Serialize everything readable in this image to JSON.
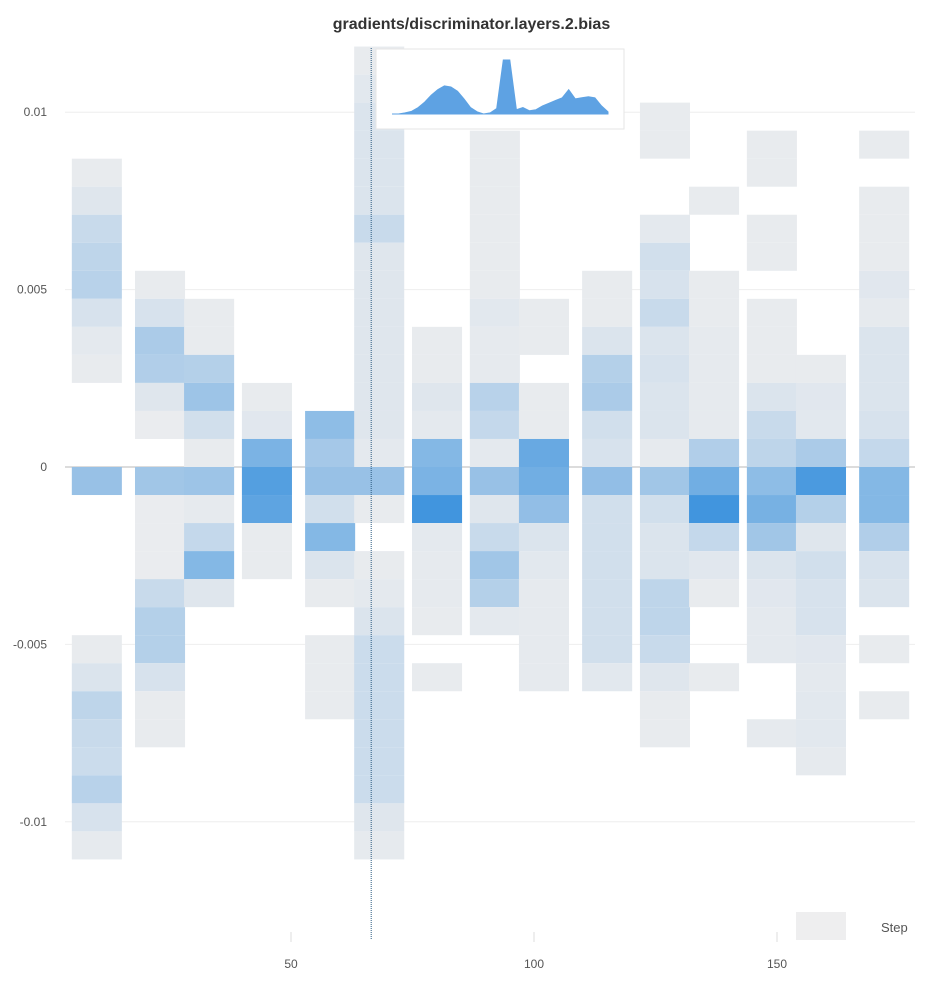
{
  "chart_data": {
    "type": "heatmap",
    "title": "gradients/discriminator.layers.2.bias",
    "xlabel": "",
    "ylabel": "",
    "xlim": [
      4.5,
      178.4
    ],
    "ylim": [
      -0.0133,
      0.0118
    ],
    "x_ticks": [
      "50",
      "100",
      "150"
    ],
    "x_tick_values": [
      50,
      100,
      150
    ],
    "y_ticks": [
      "0.01",
      "0.005",
      "0",
      "-0.005",
      "-0.01"
    ],
    "y_tick_values": [
      0.01,
      0.005,
      0,
      -0.005,
      -0.01
    ],
    "grid": true,
    "bin_size": 0.00079,
    "color_low": "#eeeeef",
    "color_high": "#2e8bdc",
    "legend": {
      "label": "Step",
      "placement": "bottom-right"
    },
    "hover_step": 66.5,
    "columns": [
      {
        "steps": [
          4.9,
          15.2
        ],
        "top_bin": 10,
        "densities": [
          0.03,
          0.08,
          0.2,
          0.25,
          0.28,
          0.12,
          0.05,
          0.03,
          null,
          null,
          null,
          0.45,
          null,
          null,
          null,
          null,
          null,
          0.03,
          0.1,
          0.25,
          0.2,
          0.18,
          0.28,
          0.12,
          0.04
        ]
      },
      {
        "steps": [
          17.9,
          28.2
        ],
        "top_bin": 6,
        "densities": [
          0.03,
          0.12,
          0.35,
          0.32,
          0.08,
          0.02,
          null,
          0.4,
          0.02,
          0.02,
          0.02,
          0.2,
          0.3,
          0.3,
          0.12,
          0.03,
          0.03
        ]
      },
      {
        "steps": [
          28,
          38.3
        ],
        "top_bin": 5,
        "densities": [
          0.03,
          0.03,
          0.3,
          0.42,
          0.15,
          0.03,
          0.42,
          0.04,
          0.22,
          0.55,
          0.08
        ]
      },
      {
        "steps": [
          39.9,
          50.2
        ],
        "top_bin": 2,
        "densities": [
          0.03,
          0.07,
          0.6,
          0.8,
          0.75,
          0.03,
          0.03
        ]
      },
      {
        "steps": [
          52.9,
          63.2
        ],
        "top_bin": 1,
        "densities": [
          0.5,
          0.38,
          0.45,
          0.15,
          0.55,
          0.1,
          0.03,
          null,
          0.03,
          0.03,
          0.03
        ]
      },
      {
        "steps": [
          63,
          73.3
        ],
        "top_bin": 14,
        "densities": [
          0.03,
          0.06,
          0.1,
          0.1,
          0.1,
          0.1,
          0.2,
          0.08,
          0.08,
          0.08,
          0.08,
          0.08,
          0.08,
          0.08,
          0.05,
          0.45,
          0.03,
          null,
          0.03,
          0.05,
          0.1,
          0.18,
          0.18,
          0.18,
          0.18,
          0.18,
          0.18,
          0.08,
          0.04
        ]
      },
      {
        "steps": [
          74.9,
          85.2
        ],
        "top_bin": 4,
        "densities": [
          0.03,
          0.03,
          0.08,
          0.05,
          0.55,
          0.6,
          0.9,
          0.05,
          0.04,
          0.04,
          0.03,
          null,
          0.03
        ]
      },
      {
        "steps": [
          86.8,
          97.1
        ],
        "top_bin": 11,
        "densities": [
          0.03,
          0.03,
          0.03,
          0.03,
          0.03,
          0.03,
          0.06,
          0.04,
          0.04,
          0.28,
          0.22,
          0.05,
          0.45,
          0.08,
          0.2,
          0.4,
          0.3,
          0.05
        ]
      },
      {
        "steps": [
          96.9,
          107.2
        ],
        "top_bin": 5,
        "densities": [
          0.03,
          0.03,
          null,
          0.03,
          0.03,
          0.7,
          0.65,
          0.48,
          0.1,
          0.06,
          0.04,
          0.04,
          0.04,
          0.04
        ]
      },
      {
        "steps": [
          109.9,
          120.2
        ],
        "top_bin": 6,
        "densities": [
          0.03,
          0.03,
          0.1,
          0.3,
          0.35,
          0.15,
          0.12,
          0.48,
          0.15,
          0.15,
          0.15,
          0.15,
          0.15,
          0.15,
          0.06
        ]
      },
      {
        "steps": [
          121.8,
          132.1
        ],
        "top_bin": 12,
        "densities": [
          0.03,
          0.03,
          null,
          null,
          0.05,
          0.15,
          0.12,
          0.2,
          0.1,
          0.12,
          0.1,
          0.1,
          0.04,
          0.4,
          0.15,
          0.1,
          0.1,
          0.25,
          0.25,
          0.2,
          0.08,
          0.03,
          0.03
        ]
      },
      {
        "steps": [
          131.9,
          142.2
        ],
        "top_bin": 9,
        "densities": [
          0.03,
          null,
          null,
          0.03,
          0.03,
          0.04,
          0.04,
          0.04,
          0.04,
          0.32,
          0.65,
          0.9,
          0.22,
          0.07,
          0.03,
          null,
          null,
          0.03
        ]
      },
      {
        "steps": [
          143.8,
          154.1
        ],
        "top_bin": 11,
        "densities": [
          0.03,
          0.03,
          null,
          0.03,
          0.03,
          null,
          0.03,
          0.03,
          0.03,
          0.1,
          0.2,
          0.25,
          0.5,
          0.62,
          0.4,
          0.1,
          0.07,
          0.05,
          0.05,
          null,
          null,
          0.04
        ]
      },
      {
        "steps": [
          153.9,
          164.2
        ],
        "top_bin": 3,
        "densities": [
          0.03,
          0.07,
          0.06,
          0.35,
          0.85,
          0.3,
          0.08,
          0.15,
          0.12,
          0.12,
          0.07,
          0.05,
          0.06,
          0.06,
          0.04
        ]
      },
      {
        "steps": [
          166.9,
          177.2
        ],
        "top_bin": 11,
        "densities": [
          0.03,
          null,
          0.03,
          0.03,
          0.03,
          0.07,
          0.04,
          0.1,
          0.1,
          0.1,
          0.12,
          0.22,
          0.55,
          0.55,
          0.32,
          0.12,
          0.1,
          null,
          0.03,
          null,
          0.03
        ]
      }
    ],
    "inset": {
      "type": "area",
      "values": [
        0,
        0,
        0.02,
        0.05,
        0.12,
        0.22,
        0.35,
        0.45,
        0.52,
        0.5,
        0.42,
        0.28,
        0.12,
        0.04,
        0,
        0.02,
        0.1,
        1,
        1,
        0.08,
        0.12,
        0.06,
        0.08,
        0.15,
        0.2,
        0.25,
        0.3,
        0.45,
        0.28,
        0.3,
        0.32,
        0.3,
        0.15,
        0.04
      ],
      "color": "#5ea2e3"
    }
  }
}
